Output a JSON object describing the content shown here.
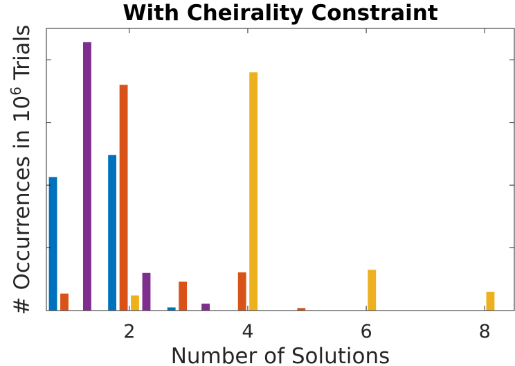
{
  "chart_data": {
    "type": "bar",
    "title": "With Cheirality Constraint",
    "xlabel": "Number of Solutions",
    "ylabel_prefix": "# Occurrences in 10",
    "ylabel_exponent": "6",
    "ylabel_suffix": " Trials",
    "xlim": [
      0.6,
      8.5
    ],
    "ylim": [
      0,
      0.45
    ],
    "x_ticks": [
      2,
      4,
      6,
      8
    ],
    "x_tick_labels": [
      "2",
      "4",
      "6",
      "8"
    ],
    "y_ticks": [
      0.1,
      0.2,
      0.3,
      0.4
    ],
    "grid": false,
    "categories": [
      1,
      2,
      3,
      4,
      5,
      6,
      7,
      8
    ],
    "series": [
      {
        "color": "#0072BD",
        "values": [
          0.213,
          0.248,
          0.005,
          0,
          0,
          0,
          0,
          0
        ]
      },
      {
        "color": "#D95319",
        "values": [
          0.027,
          0.36,
          0.046,
          0.061,
          0.004,
          0,
          0,
          0
        ]
      },
      {
        "color": "#EDB120",
        "values": [
          0,
          0.024,
          0,
          0.38,
          0,
          0.065,
          0,
          0.03
        ]
      },
      {
        "color": "#7E2F8E",
        "values": [
          0.428,
          0.06,
          0.011,
          0,
          0,
          0,
          0,
          0
        ]
      }
    ]
  }
}
